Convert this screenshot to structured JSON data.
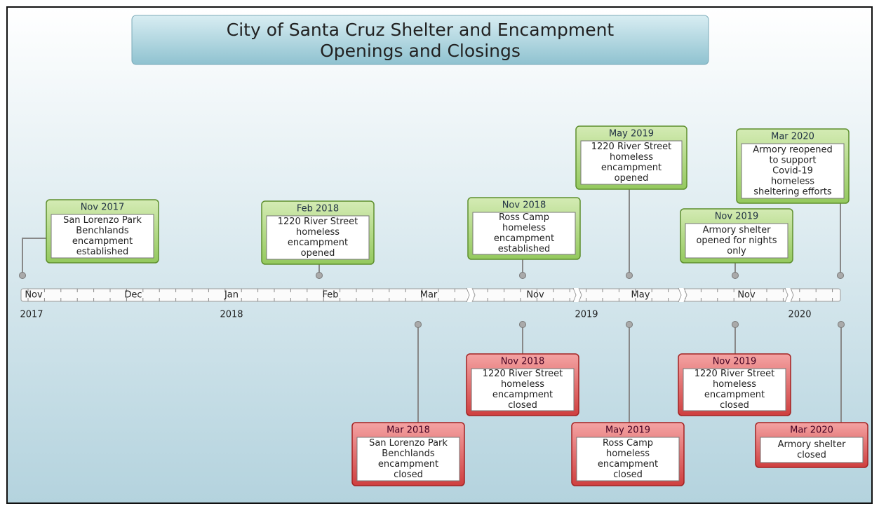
{
  "title": [
    "City of Santa Cruz Shelter and Encampment",
    "Openings and Closings"
  ],
  "months": [
    "Nov",
    "Dec",
    "Jan",
    "Feb",
    "Mar",
    "Nov",
    "May",
    "Nov"
  ],
  "years": [
    "2017",
    "2018",
    "2019",
    "2020"
  ],
  "openings": [
    {
      "date": "Nov 2017",
      "lines": [
        "San Lorenzo Park",
        "Benchlands",
        "encampment",
        "established"
      ]
    },
    {
      "date": "Feb 2018",
      "lines": [
        "1220 River Street",
        "homeless",
        "encampment",
        "opened"
      ]
    },
    {
      "date": "Nov 2018",
      "lines": [
        "Ross Camp",
        "homeless",
        "encampment",
        "established"
      ]
    },
    {
      "date": "May 2019",
      "lines": [
        "1220 River Street",
        "homeless",
        "encampment",
        "opened"
      ]
    },
    {
      "date": "Nov 2019",
      "lines": [
        "Armory shelter",
        "opened for nights",
        "only"
      ]
    },
    {
      "date": "Mar 2020",
      "lines": [
        "Armory reopened",
        "to support",
        "Covid-19",
        "homeless",
        "sheltering efforts"
      ]
    }
  ],
  "closings": [
    {
      "date": "Mar 2018",
      "lines": [
        "San Lorenzo Park",
        "Benchlands",
        "encampment",
        "closed"
      ]
    },
    {
      "date": "Nov 2018",
      "lines": [
        "1220 River Street",
        "homeless",
        "encampment",
        "closed"
      ]
    },
    {
      "date": "May 2019",
      "lines": [
        "Ross Camp",
        "homeless",
        "encampment",
        "closed"
      ]
    },
    {
      "date": "Nov 2019",
      "lines": [
        "1220 River Street",
        "homeless",
        "encampment",
        "closed"
      ]
    },
    {
      "date": "Mar 2020",
      "lines": [
        "Armory shelter",
        "closed"
      ]
    }
  ]
}
